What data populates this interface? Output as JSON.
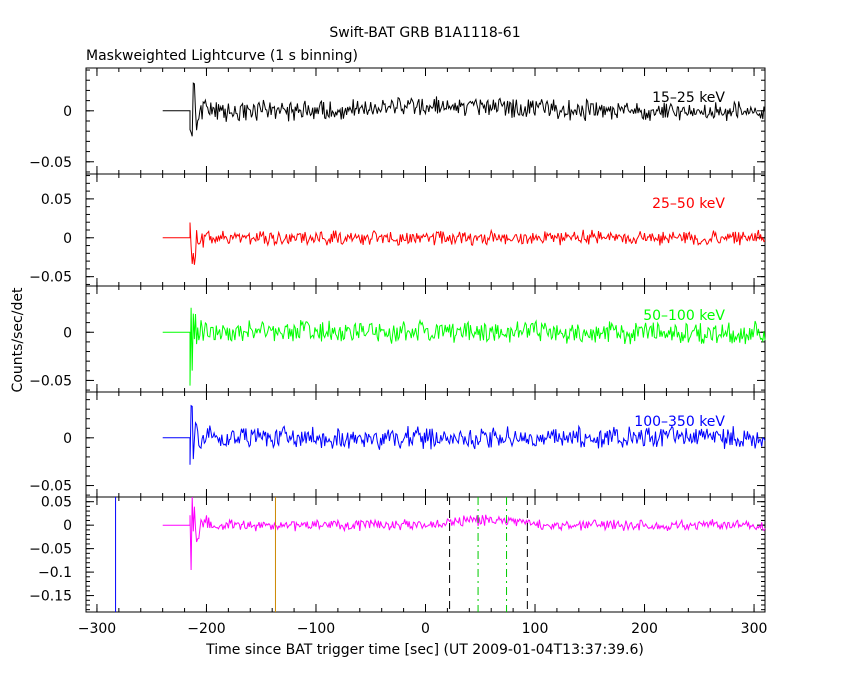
{
  "title": "Swift-BAT GRB B1A1118-61",
  "subtitle": "Maskweighted Lightcurve (1 s binning)",
  "ylabel": "Counts/sec/det",
  "xlabel": "Time since BAT trigger time [sec] (UT 2009-01-04T13:37:39.6)",
  "chart_data": {
    "type": "line",
    "xlim": [
      -310,
      310
    ],
    "x_ticks": [
      -300,
      -200,
      -100,
      0,
      100,
      200,
      300
    ],
    "x_tick_labels": [
      "−300",
      "−200",
      "−100",
      "0",
      "100",
      "200",
      "300"
    ],
    "panels": [
      {
        "label": "15–25 keV",
        "color": "#000000",
        "ylim": [
          -0.062,
          0.042
        ],
        "y_ticks": [
          0,
          -0.05
        ],
        "y_tick_labels": [
          "0",
          "−0.05"
        ],
        "noise": 0.008,
        "spike": 0.055
      },
      {
        "label": "25–50 keV",
        "color": "#ff0000",
        "ylim": [
          -0.062,
          0.082
        ],
        "y_ticks": [
          0.05,
          0,
          -0.05
        ],
        "y_tick_labels": [
          "0.05",
          "0",
          "−0.05"
        ],
        "noise": 0.007,
        "spike": 0.07
      },
      {
        "label": "50–100 keV",
        "color": "#00ff00",
        "ylim": [
          -0.062,
          0.048
        ],
        "y_ticks": [
          0,
          -0.05
        ],
        "y_tick_labels": [
          "0",
          "−0.05"
        ],
        "noise": 0.009,
        "spike": 0.05
      },
      {
        "label": "100–350 keV",
        "color": "#0000ff",
        "ylim": [
          -0.062,
          0.048
        ],
        "y_ticks": [
          0,
          -0.05
        ],
        "y_tick_labels": [
          "0",
          "−0.05"
        ],
        "noise": 0.009,
        "spike": 0.05
      },
      {
        "label": "",
        "color": "#ff00ff",
        "ylim": [
          -0.185,
          0.06
        ],
        "y_ticks": [
          0.05,
          0,
          -0.05,
          -0.1,
          -0.15
        ],
        "y_tick_labels": [
          "0.05",
          "0",
          "−0.05",
          "−0.1",
          "−0.15"
        ],
        "noise": 0.009,
        "spike": 0.17
      }
    ],
    "series_start": -240,
    "flat_until": -215,
    "series_end": 310,
    "vertical_markers": [
      {
        "x": -283,
        "color": "#0000ff",
        "style": "solid"
      },
      {
        "x": -137,
        "color": "#cc8800",
        "style": "solid"
      },
      {
        "x": 22,
        "color": "#000000",
        "style": "dashed"
      },
      {
        "x": 48,
        "color": "#00cc00",
        "style": "dashdot"
      },
      {
        "x": 74,
        "color": "#00cc00",
        "style": "dashdot"
      },
      {
        "x": 93,
        "color": "#000000",
        "style": "dashed"
      }
    ]
  }
}
